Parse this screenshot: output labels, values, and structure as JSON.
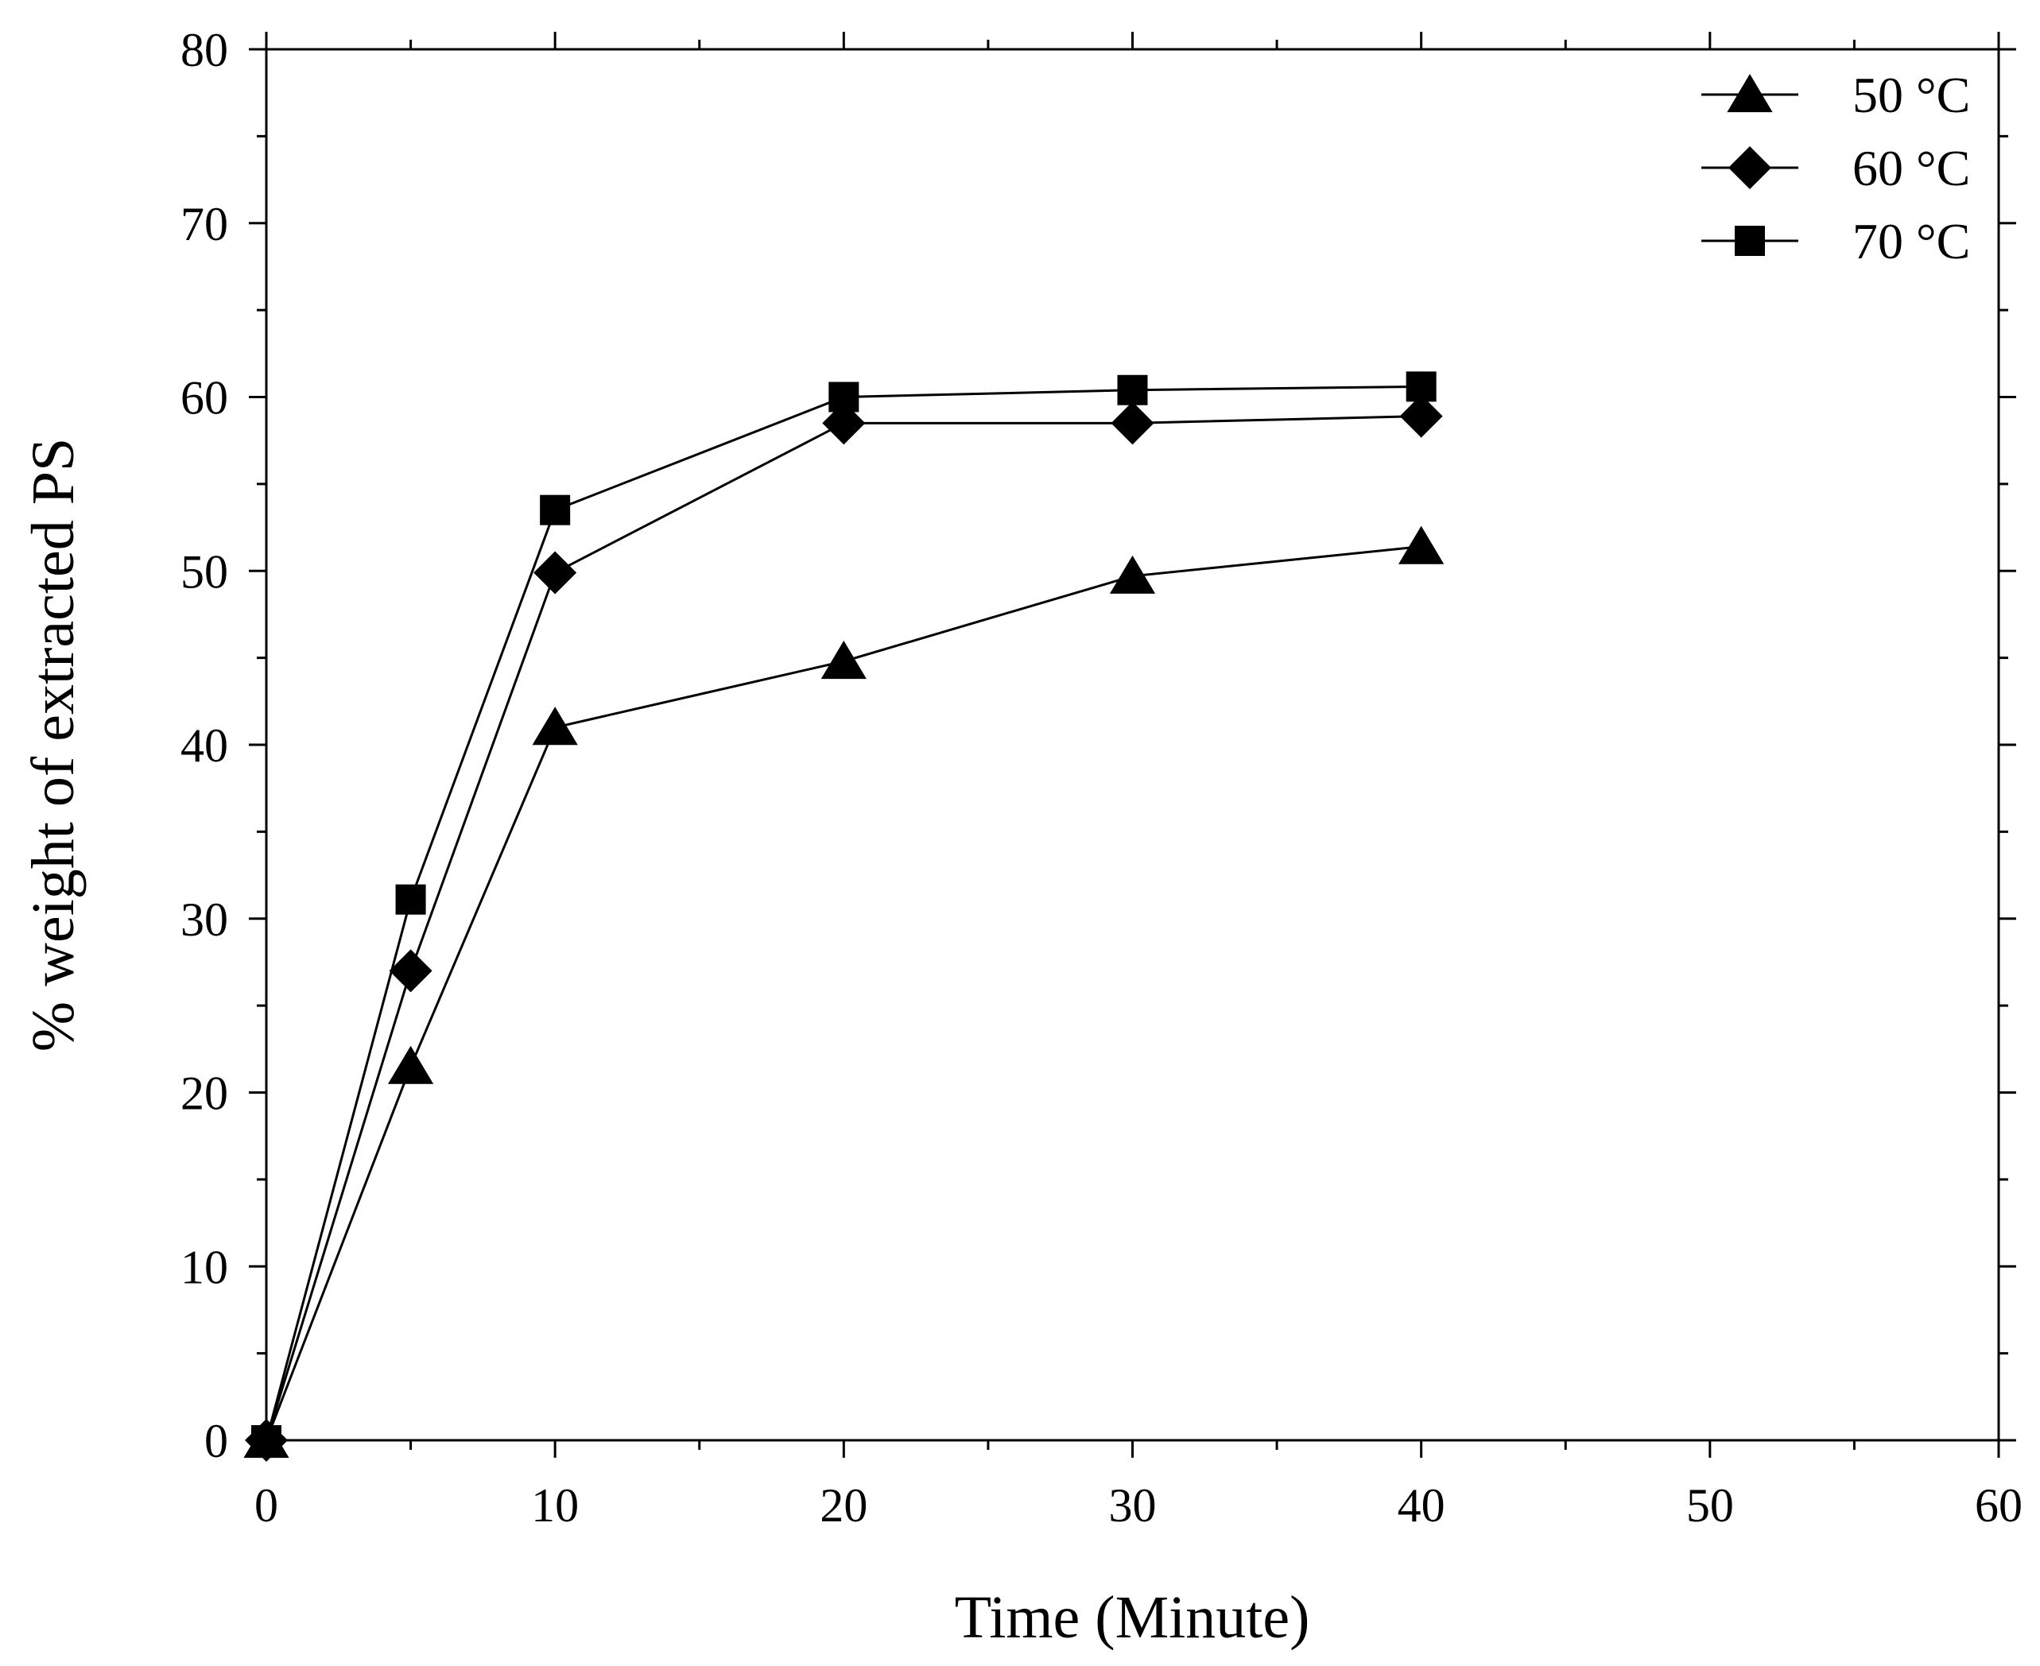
{
  "chart_data": {
    "type": "line",
    "title": "",
    "xlabel": "Time (Minute)",
    "ylabel": "% weight of extracted PS",
    "xlim": [
      0,
      60
    ],
    "ylim": [
      0,
      80
    ],
    "xticks": [
      0,
      10,
      20,
      30,
      40,
      50,
      60
    ],
    "yticks": [
      0,
      10,
      20,
      30,
      40,
      50,
      60,
      70,
      80
    ],
    "xtick_labels": [
      "0",
      "10",
      "20",
      "30",
      "40",
      "50",
      "60"
    ],
    "ytick_labels": [
      "0",
      "10",
      "20",
      "30",
      "40",
      "50",
      "60",
      "70",
      "80"
    ],
    "grid": false,
    "legend_position": "top-right",
    "x": [
      0,
      5,
      10,
      20,
      30,
      40
    ],
    "series": [
      {
        "name": "50 °C",
        "marker": "triangle",
        "values": [
          0,
          21.5,
          41,
          44.8,
          49.7,
          51.4
        ]
      },
      {
        "name": "60 °C",
        "marker": "diamond",
        "values": [
          0,
          27,
          49.9,
          58.5,
          58.5,
          58.9
        ]
      },
      {
        "name": "70 °C",
        "marker": "square",
        "values": [
          0,
          31.1,
          53.5,
          60,
          60.4,
          60.6
        ]
      }
    ],
    "colors": {
      "line": "#000000",
      "marker": "#000000",
      "background": "#ffffff"
    }
  }
}
